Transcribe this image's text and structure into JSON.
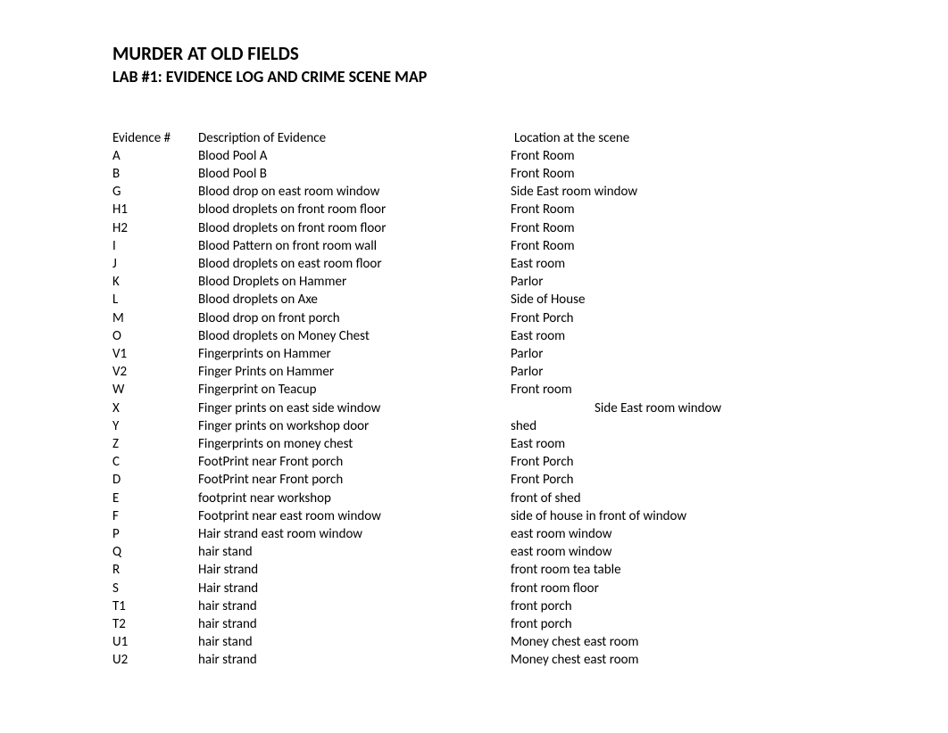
{
  "title": "MURDER AT OLD FIELDS",
  "subtitle": "LAB #1: EVIDENCE LOG AND CRIME SCENE MAP",
  "columns": {
    "id": "Evidence #",
    "desc": "Description of Evidence",
    "loc": "Location at the scene"
  },
  "rows": [
    {
      "id": "A",
      "desc": "Blood Pool A",
      "loc": "Front Room",
      "indent": false
    },
    {
      "id": "B",
      "desc": "Blood Pool B",
      "loc": "Front Room",
      "indent": false
    },
    {
      "id": "G",
      "desc": "Blood drop on east room window",
      "loc": "Side East room window",
      "indent": false
    },
    {
      "id": "H1",
      "desc": "blood droplets on front room floor",
      "loc": "Front Room",
      "indent": false
    },
    {
      "id": "H2",
      "desc": "Blood droplets on front room floor",
      "loc": "Front Room",
      "indent": false
    },
    {
      "id": "I",
      "desc": "Blood Pattern on front room wall",
      "loc": "Front Room",
      "indent": false
    },
    {
      "id": "J",
      "desc": "Blood droplets on east room floor",
      "loc": "East room",
      "indent": false
    },
    {
      "id": "K",
      "desc": "Blood Droplets on Hammer",
      "loc": "Parlor",
      "indent": false
    },
    {
      "id": "L",
      "desc": "Blood droplets on Axe",
      "loc": "Side of House",
      "indent": false
    },
    {
      "id": "M",
      "desc": "Blood drop on front porch",
      "loc": "Front Porch",
      "indent": false
    },
    {
      "id": "O",
      "desc": "Blood droplets on Money Chest",
      "loc": "East room",
      "indent": false
    },
    {
      "id": "V1",
      "desc": "Fingerprints on Hammer",
      "loc": "Parlor",
      "indent": false
    },
    {
      "id": "V2",
      "desc": "Finger Prints on Hammer",
      "loc": "Parlor",
      "indent": false
    },
    {
      "id": "W",
      "desc": "Fingerprint on Teacup",
      "loc": "Front room",
      "indent": false
    },
    {
      "id": "X",
      "desc": "Finger prints on east side window",
      "loc": "Side East room window",
      "indent": true
    },
    {
      "id": "Y",
      "desc": "Finger prints on workshop door",
      "loc": "shed",
      "indent": false
    },
    {
      "id": "Z",
      "desc": "Fingerprints on money chest",
      "loc": "East room",
      "indent": false
    },
    {
      "id": "C",
      "desc": "FootPrint near Front porch",
      "loc": "Front Porch",
      "indent": false
    },
    {
      "id": "D",
      "desc": "FootPrint near Front porch",
      "loc": "Front Porch",
      "indent": false
    },
    {
      "id": "E",
      "desc": "footprint near workshop",
      "loc": "front of shed",
      "indent": false
    },
    {
      "id": "F",
      "desc": "Footprint near east room window",
      "loc": "side of house in front of window",
      "indent": false
    },
    {
      "id": "P",
      "desc": "Hair strand east room window",
      "loc": "east room window",
      "indent": false
    },
    {
      "id": "Q",
      "desc": "hair stand",
      "loc": "east room window",
      "indent": false
    },
    {
      "id": "R",
      "desc": "Hair strand",
      "loc": "front room tea table",
      "indent": false
    },
    {
      "id": "S",
      "desc": "Hair strand",
      "loc": "front room floor",
      "indent": false
    },
    {
      "id": "T1",
      "desc": "hair strand",
      "loc": "front porch",
      "indent": false
    },
    {
      "id": "T2",
      "desc": "hair strand",
      "loc": "front porch",
      "indent": false
    },
    {
      "id": "U1",
      "desc": "hair stand",
      "loc": "Money chest east room",
      "indent": false
    },
    {
      "id": "U2",
      "desc": "hair strand",
      "loc": "Money chest east room",
      "indent": false
    }
  ]
}
